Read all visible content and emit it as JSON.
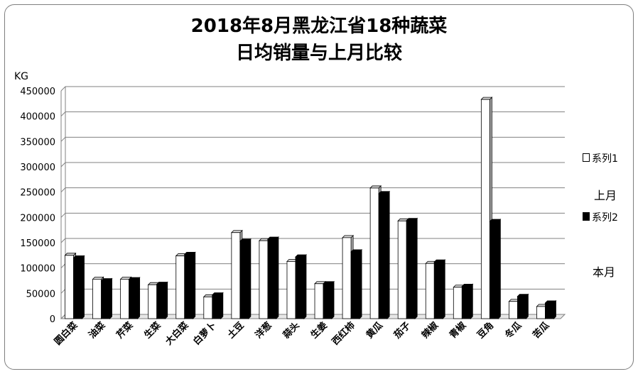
{
  "chart_data": {
    "type": "bar",
    "title_line1": "2018年8月黑龙江省18种蔬菜",
    "title_line2": "日均销量与上月比较",
    "unit_label": "KG",
    "categories": [
      "圆白菜",
      "油菜",
      "芹菜",
      "生菜",
      "大白菜",
      "白萝卜",
      "土豆",
      "洋葱",
      "蒜头",
      "生姜",
      "西红柿",
      "黄瓜",
      "茄子",
      "辣椒",
      "青椒",
      "豆角",
      "冬瓜",
      "苦瓜"
    ],
    "series": [
      {
        "name": "系列1",
        "color": "#ffffff",
        "values": [
          125000,
          78000,
          78000,
          67000,
          124000,
          43000,
          170000,
          154000,
          113000,
          69000,
          160000,
          258000,
          193000,
          109000,
          62000,
          433000,
          34000,
          24000
        ]
      },
      {
        "name": "系列2",
        "color": "#000000",
        "values": [
          120000,
          75000,
          77000,
          68000,
          127000,
          47000,
          153000,
          157000,
          122000,
          69000,
          132000,
          247000,
          194000,
          112000,
          64000,
          192000,
          44000,
          31000
        ]
      }
    ],
    "ylim": [
      0,
      450000
    ],
    "yticks": [
      "0",
      "50000",
      "100000",
      "150000",
      "200000",
      "250000",
      "300000",
      "350000",
      "400000",
      "450000"
    ],
    "grid": true,
    "legend_position": "right",
    "annotations": {
      "last_month": "上月",
      "this_month": "本月"
    }
  }
}
